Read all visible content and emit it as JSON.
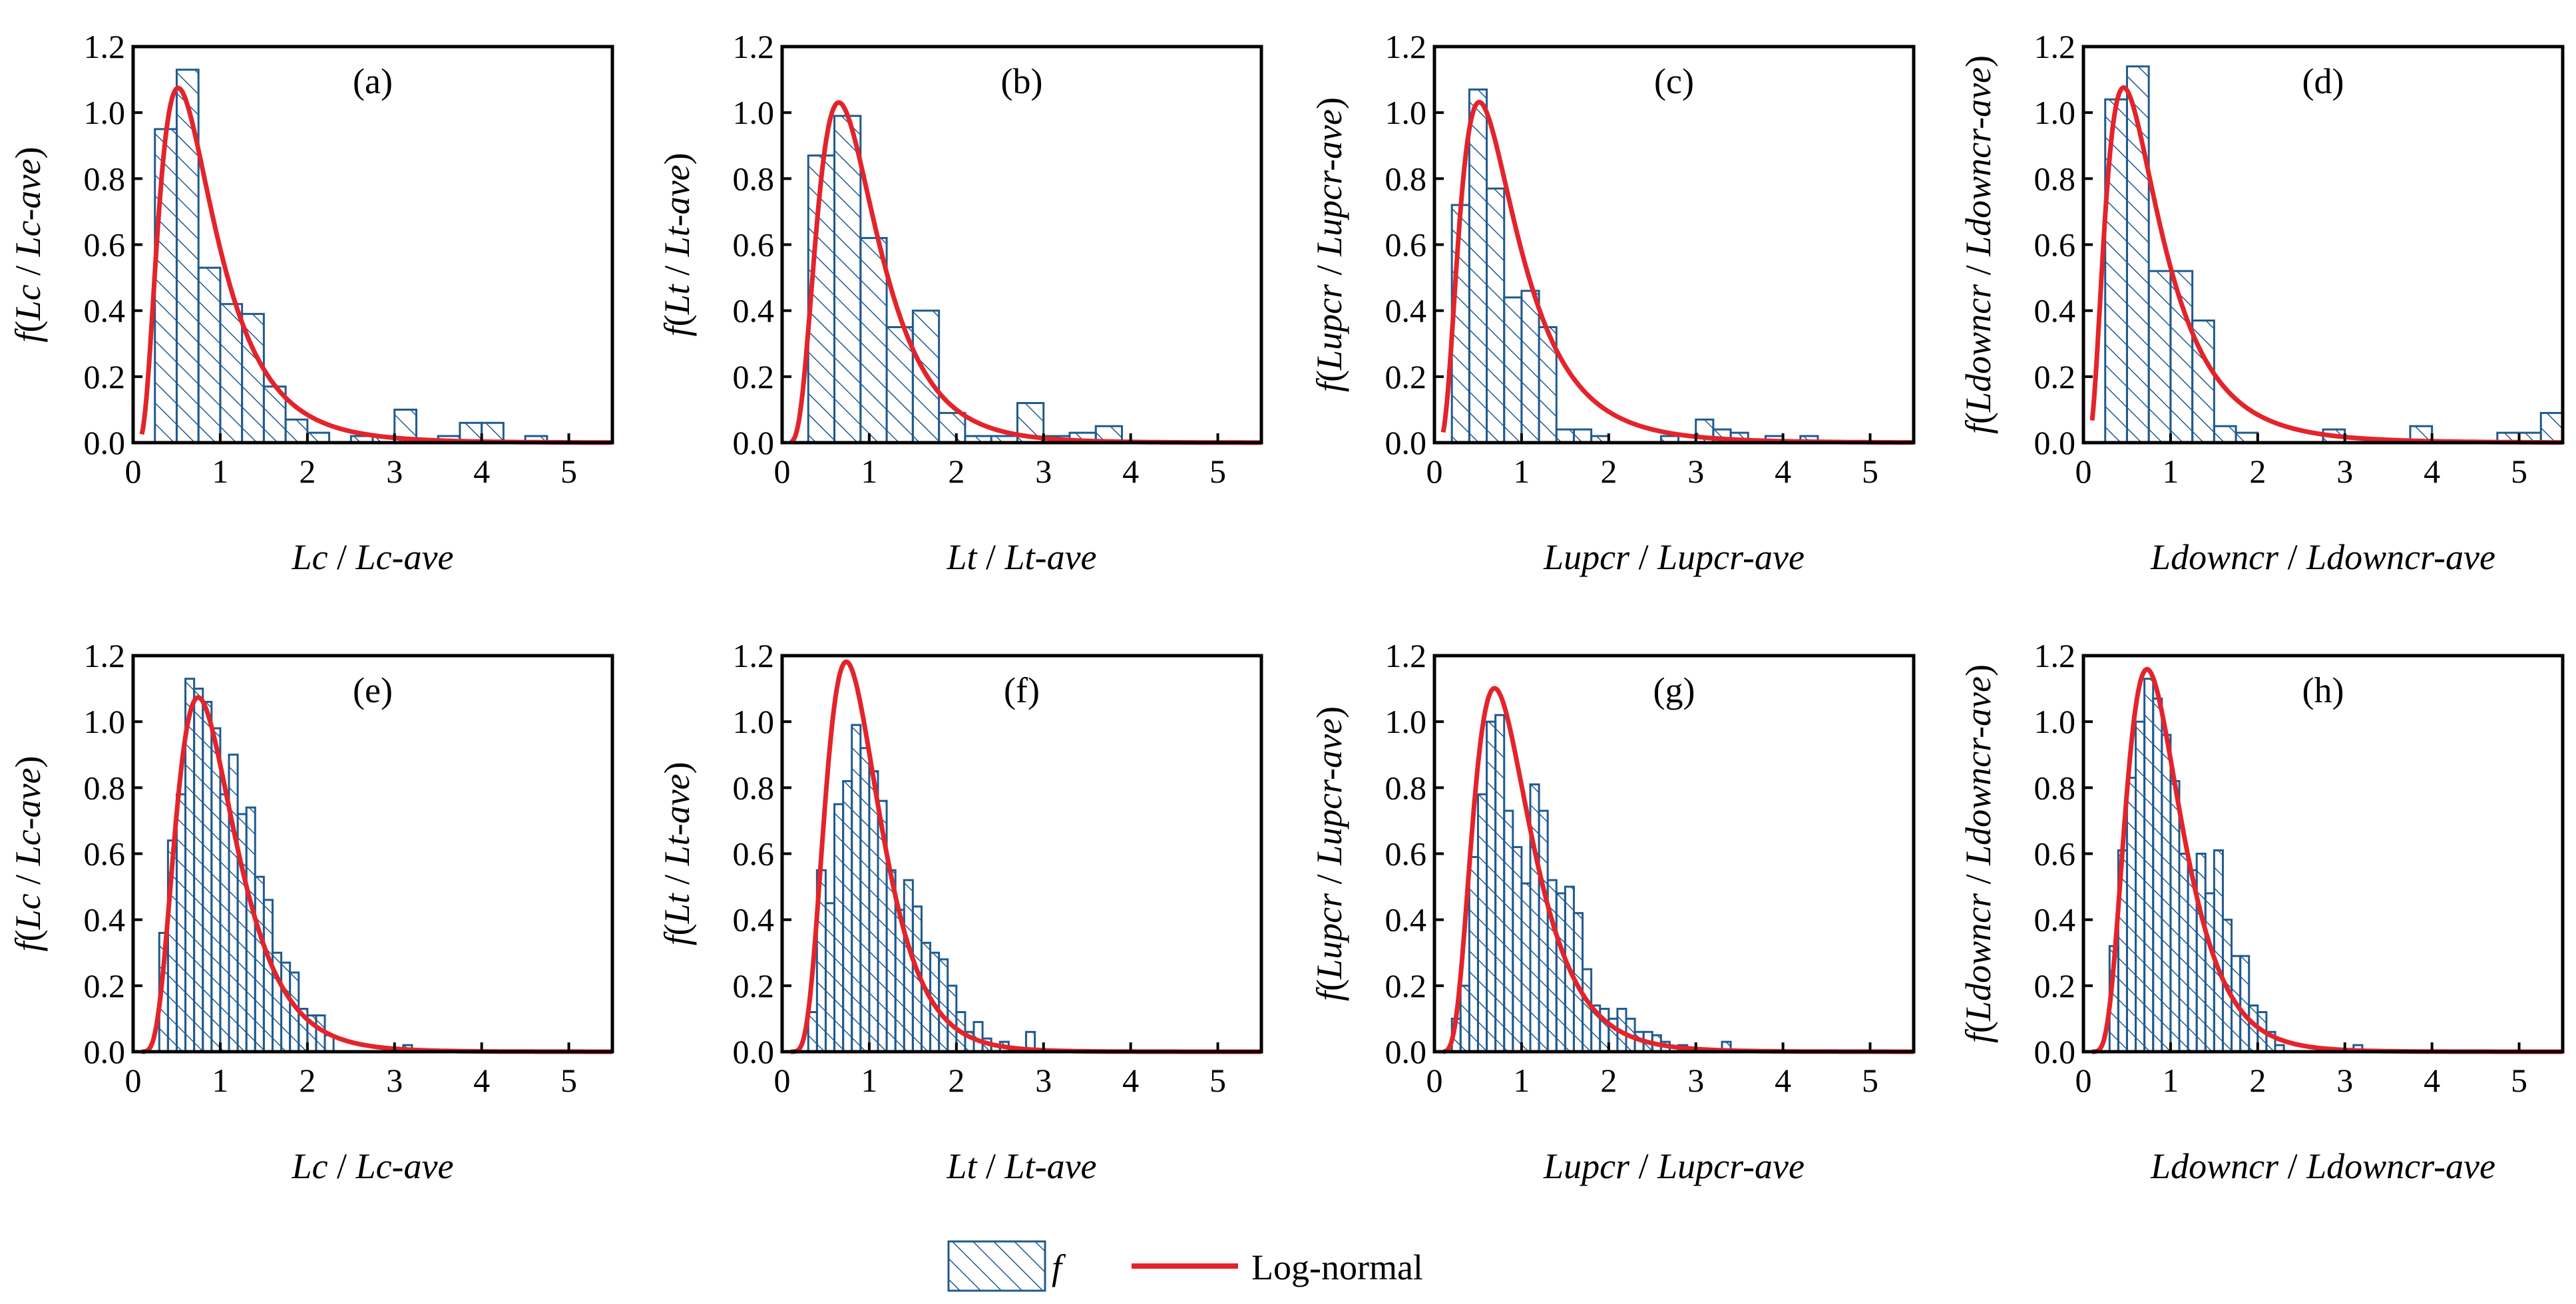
{
  "colors": {
    "bar": "#1f5a8f",
    "curve": "#e3242b",
    "axis": "#000000",
    "background": "#ffffff"
  },
  "legend": {
    "bar_label": "f",
    "curve_label": "Log-normal",
    "bar_icon": "hatched-box-icon",
    "curve_icon": "red-line-icon"
  },
  "chart_data": [
    {
      "id": "a",
      "label": "(a)",
      "type": "bar",
      "xlabel": "Lc / Lc-ave",
      "ylabel": "f(Lc / Lc-ave)",
      "xlim": [
        0,
        5.5
      ],
      "ylim": [
        0,
        1.2
      ],
      "xticks": [
        "0",
        "1",
        "2",
        "3",
        "4",
        "5"
      ],
      "yticks": [
        "0.0",
        "0.2",
        "0.4",
        "0.6",
        "0.8",
        "1.0",
        "1.2"
      ],
      "bin_start": 0.25,
      "bin_width": 0.25,
      "values": [
        0.95,
        1.13,
        0.53,
        0.42,
        0.39,
        0.17,
        0.07,
        0.03,
        0.0,
        0.02,
        0.02,
        0.1,
        0.0,
        0.02,
        0.06,
        0.06,
        0.0,
        0.02
      ],
      "curve": {
        "name": "Log-normal",
        "mu": -0.3,
        "sigma": 0.6,
        "x_range": [
          0.1,
          5.5
        ]
      }
    },
    {
      "id": "b",
      "label": "(b)",
      "type": "bar",
      "xlabel": "Lt / Lt-ave",
      "ylabel": "f(Lt / Lt-ave)",
      "xlim": [
        0,
        5.5
      ],
      "ylim": [
        0,
        1.2
      ],
      "xticks": [
        "0",
        "1",
        "2",
        "3",
        "4",
        "5"
      ],
      "yticks": [
        "0.0",
        "0.2",
        "0.4",
        "0.6",
        "0.8",
        "1.0",
        "1.2"
      ],
      "bin_start": 0.3,
      "bin_width": 0.3,
      "values": [
        0.87,
        0.99,
        0.62,
        0.35,
        0.4,
        0.09,
        0.02,
        0.02,
        0.12,
        0.02,
        0.03,
        0.05
      ],
      "curve": {
        "name": "Log-normal",
        "mu": -0.16,
        "sigma": 0.52,
        "x_range": [
          0.1,
          5.5
        ]
      }
    },
    {
      "id": "c",
      "label": "(c)",
      "type": "bar",
      "xlabel": "Lupcr / Lupcr-ave",
      "ylabel": "f(Lupcr / Lupcr-ave)",
      "xlim": [
        0,
        5.5
      ],
      "ylim": [
        0,
        1.2
      ],
      "xticks": [
        "0",
        "1",
        "2",
        "3",
        "4",
        "5"
      ],
      "yticks": [
        "0.0",
        "0.2",
        "0.4",
        "0.6",
        "0.8",
        "1.0",
        "1.2"
      ],
      "bin_start": 0.2,
      "bin_width": 0.2,
      "values": [
        0.72,
        1.07,
        0.77,
        0.44,
        0.46,
        0.35,
        0.04,
        0.04,
        0.02,
        0.0,
        0.0,
        0.0,
        0.02,
        0.0,
        0.07,
        0.04,
        0.03,
        0.0,
        0.02,
        0.0,
        0.02
      ],
      "curve": {
        "name": "Log-normal",
        "mu": -0.28,
        "sigma": 0.62,
        "x_range": [
          0.1,
          5.5
        ]
      }
    },
    {
      "id": "d",
      "label": "(d)",
      "type": "bar",
      "xlabel": "Ldowncr / Ldowncr-ave",
      "ylabel": "f(Ldowncr / Ldowncr-ave)",
      "xlim": [
        0,
        5.5
      ],
      "ylim": [
        0,
        1.2
      ],
      "xticks": [
        "0",
        "1",
        "2",
        "3",
        "4",
        "5"
      ],
      "yticks": [
        "0.0",
        "0.2",
        "0.4",
        "0.6",
        "0.8",
        "1.0",
        "1.2"
      ],
      "bin_start": 0.25,
      "bin_width": 0.25,
      "values": [
        1.04,
        1.14,
        0.52,
        0.52,
        0.37,
        0.05,
        0.03,
        0.0,
        0.0,
        0.0,
        0.04,
        0.0,
        0.0,
        0.0,
        0.05,
        0.0,
        0.0,
        0.0,
        0.03,
        0.03,
        0.09
      ],
      "curve": {
        "name": "Log-normal",
        "mu": -0.35,
        "sigma": 0.65,
        "x_range": [
          0.1,
          5.5
        ]
      }
    },
    {
      "id": "e",
      "label": "(e)",
      "type": "bar",
      "xlabel": "Lc / Lc-ave",
      "ylabel": "f(Lc / Lc-ave)",
      "xlim": [
        0,
        5.5
      ],
      "ylim": [
        0,
        1.2
      ],
      "xticks": [
        "0",
        "1",
        "2",
        "3",
        "4",
        "5"
      ],
      "yticks": [
        "0.0",
        "0.2",
        "0.4",
        "0.6",
        "0.8",
        "1.0",
        "1.2"
      ],
      "bin_start": 0.3,
      "bin_width": 0.1,
      "values": [
        0.36,
        0.64,
        0.78,
        1.13,
        1.1,
        1.06,
        0.98,
        0.78,
        0.9,
        0.72,
        0.74,
        0.53,
        0.46,
        0.3,
        0.27,
        0.24,
        0.13,
        0.11,
        0.11,
        0.05,
        0.0,
        0.0,
        0.0,
        0.0,
        0.0,
        0.0,
        0.0,
        0.0,
        0.02
      ],
      "curve": {
        "name": "Log-normal",
        "mu": -0.09,
        "sigma": 0.45,
        "x_range": [
          0.1,
          5.5
        ]
      }
    },
    {
      "id": "f",
      "label": "(f)",
      "type": "bar",
      "xlabel": "Lt / Lt-ave",
      "ylabel": "f(Lt / Lt-ave)",
      "xlim": [
        0,
        5.5
      ],
      "ylim": [
        0,
        1.2
      ],
      "xticks": [
        "0",
        "1",
        "2",
        "3",
        "4",
        "5"
      ],
      "yticks": [
        "0.0",
        "0.2",
        "0.4",
        "0.6",
        "0.8",
        "1.0",
        "1.2"
      ],
      "bin_start": 0.3,
      "bin_width": 0.1,
      "values": [
        0.12,
        0.55,
        0.45,
        0.75,
        0.82,
        0.99,
        0.92,
        0.85,
        0.76,
        0.55,
        0.43,
        0.52,
        0.44,
        0.33,
        0.3,
        0.28,
        0.2,
        0.12,
        0.06,
        0.09,
        0.04,
        0.02,
        0.03,
        0.0,
        0.0,
        0.06
      ],
      "curve": {
        "name": "Log-normal",
        "mu": -0.13,
        "sigma": 0.42,
        "x_range": [
          0.1,
          5.5
        ]
      }
    },
    {
      "id": "g",
      "label": "(g)",
      "type": "bar",
      "xlabel": "Lupcr / Lupcr-ave",
      "ylabel": "f(Lupcr / Lupcr-ave)",
      "xlim": [
        0,
        5.5
      ],
      "ylim": [
        0,
        1.2
      ],
      "xticks": [
        "0",
        "1",
        "2",
        "3",
        "4",
        "5"
      ],
      "yticks": [
        "0.0",
        "0.2",
        "0.4",
        "0.6",
        "0.8",
        "1.0",
        "1.2"
      ],
      "bin_start": 0.2,
      "bin_width": 0.1,
      "values": [
        0.1,
        0.2,
        0.59,
        0.78,
        1.0,
        1.02,
        0.73,
        0.62,
        0.51,
        0.81,
        0.73,
        0.52,
        0.48,
        0.5,
        0.42,
        0.25,
        0.14,
        0.13,
        0.1,
        0.13,
        0.1,
        0.06,
        0.06,
        0.05,
        0.03,
        0.0,
        0.02,
        0.01,
        0.0,
        0.0,
        0.0,
        0.03
      ],
      "curve": {
        "name": "Log-normal",
        "mu": -0.15,
        "sigma": 0.47,
        "x_range": [
          0.1,
          5.5
        ]
      }
    },
    {
      "id": "h",
      "label": "(h)",
      "type": "bar",
      "xlabel": "Ldowncr / Ldowncr-ave",
      "ylabel": "f(Ldowncr / Ldowncr-ave)",
      "xlim": [
        0,
        5.5
      ],
      "ylim": [
        0,
        1.2
      ],
      "xticks": [
        "0",
        "1",
        "2",
        "3",
        "4",
        "5"
      ],
      "yticks": [
        "0.0",
        "0.2",
        "0.4",
        "0.6",
        "0.8",
        "1.0",
        "1.2"
      ],
      "bin_start": 0.3,
      "bin_width": 0.1,
      "values": [
        0.32,
        0.61,
        0.83,
        1.0,
        1.13,
        1.07,
        0.96,
        0.82,
        0.6,
        0.55,
        0.6,
        0.48,
        0.61,
        0.4,
        0.29,
        0.29,
        0.14,
        0.12,
        0.06,
        0.02,
        0.0,
        0.0,
        0.0,
        0.0,
        0.0,
        0.0,
        0.0,
        0.0,
        0.02
      ],
      "curve": {
        "name": "Log-normal",
        "mu": -0.13,
        "sigma": 0.43,
        "x_range": [
          0.1,
          5.5
        ]
      }
    }
  ]
}
